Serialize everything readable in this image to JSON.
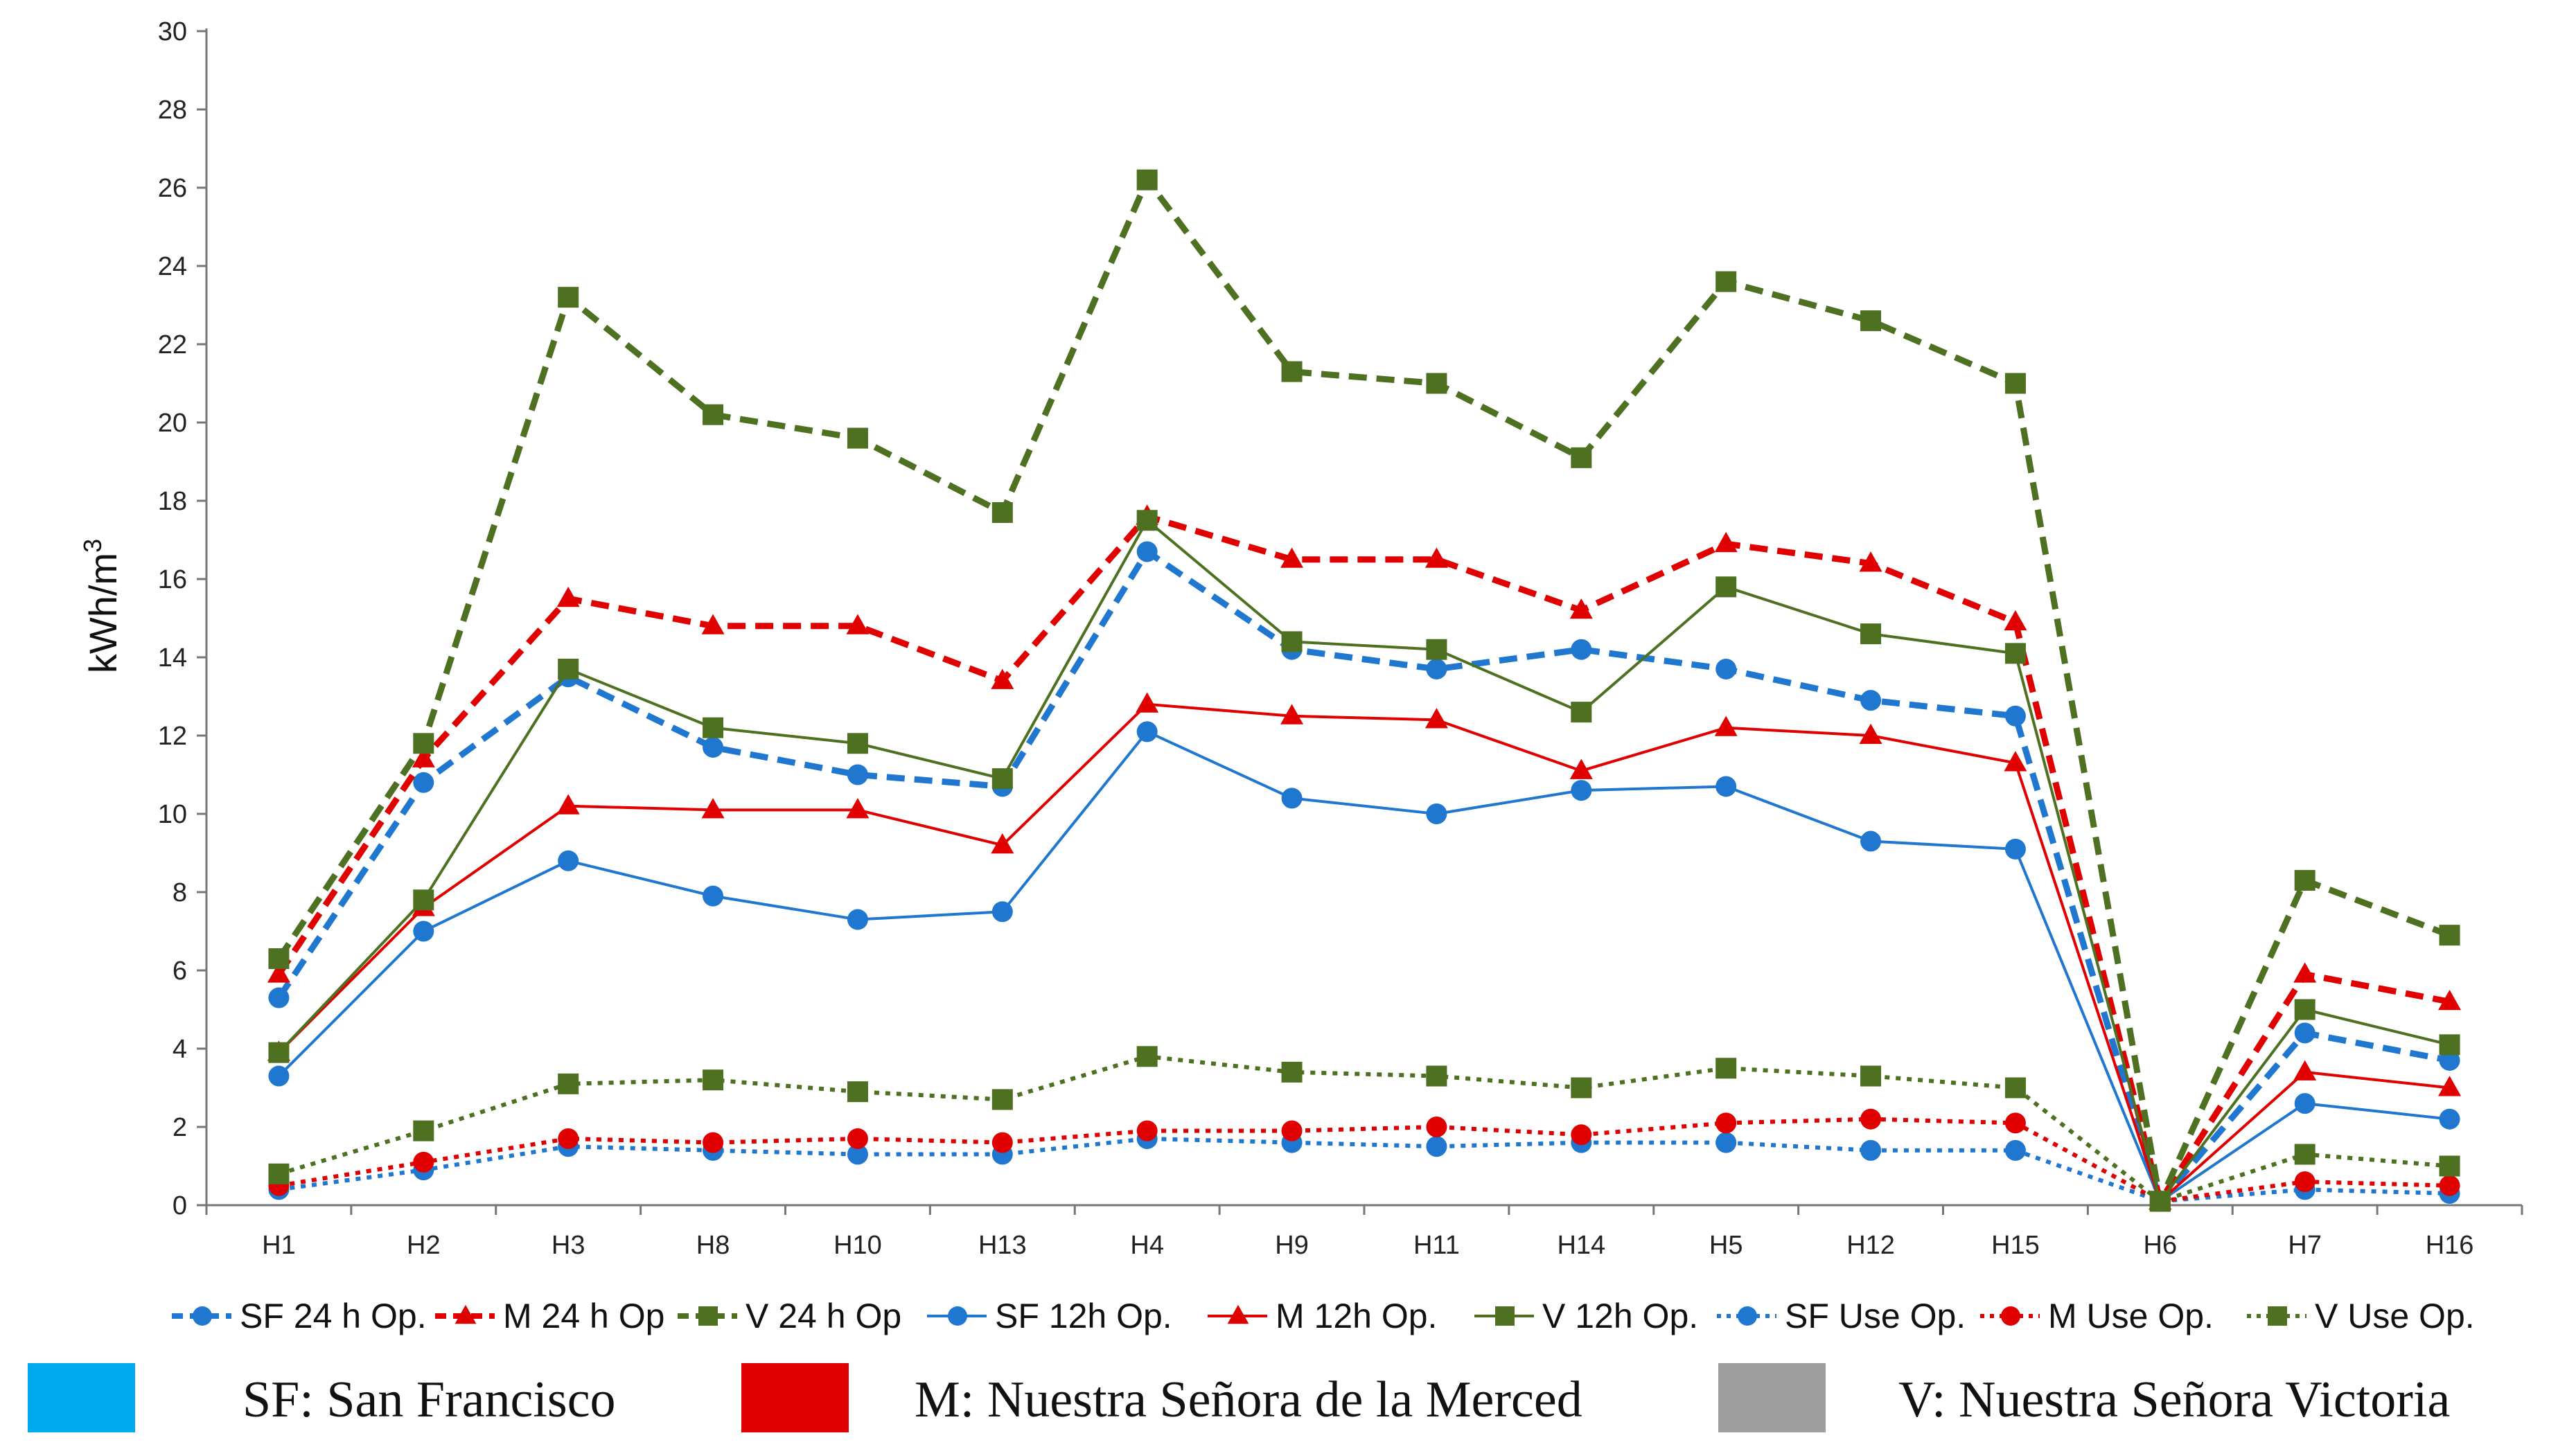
{
  "chart_data": {
    "type": "line",
    "title": "",
    "xlabel": "",
    "ylabel": "kWh/m",
    "ylabel_superscript": "3",
    "ylim": [
      0,
      30
    ],
    "y_ticks": [
      "0",
      "2",
      "4",
      "6",
      "8",
      "10",
      "12",
      "14",
      "16",
      "18",
      "20",
      "22",
      "24",
      "26",
      "28",
      "30"
    ],
    "categories": [
      "H1",
      "H2",
      "H3",
      "H8",
      "H10",
      "H13",
      "H4",
      "H9",
      "H11",
      "H14",
      "H5",
      "H12",
      "H15",
      "H6",
      "H7",
      "H16"
    ],
    "series": [
      {
        "name": "SF 24 h Op.",
        "color": "#1f77d0",
        "dash": "dashed",
        "marker": "circle",
        "values": [
          5.3,
          10.8,
          13.5,
          11.7,
          11.0,
          10.7,
          16.7,
          14.2,
          13.7,
          14.2,
          13.7,
          12.9,
          12.5,
          0.1,
          4.4,
          3.7
        ]
      },
      {
        "name": "M 24 h Op",
        "color": "#e00000",
        "dash": "dashed",
        "marker": "triangle",
        "values": [
          5.9,
          11.4,
          15.5,
          14.8,
          14.8,
          13.4,
          17.6,
          16.5,
          16.5,
          15.2,
          16.9,
          16.4,
          14.9,
          0.1,
          5.9,
          5.2
        ]
      },
      {
        "name": "V 24 h Op",
        "color": "#4d7021",
        "dash": "dashed",
        "marker": "square",
        "values": [
          6.3,
          11.8,
          23.2,
          20.2,
          19.6,
          17.7,
          26.2,
          21.3,
          21.0,
          19.1,
          23.6,
          22.6,
          21.0,
          0.1,
          8.3,
          6.9
        ]
      },
      {
        "name": "SF 12h Op.",
        "color": "#1f77d0",
        "dash": "solid",
        "marker": "circle",
        "values": [
          3.3,
          7.0,
          8.8,
          7.9,
          7.3,
          7.5,
          12.1,
          10.4,
          10.0,
          10.6,
          10.7,
          9.3,
          9.1,
          0.1,
          2.6,
          2.2
        ]
      },
      {
        "name": "M 12h Op.",
        "color": "#e00000",
        "dash": "solid",
        "marker": "triangle",
        "values": [
          3.9,
          7.6,
          10.2,
          10.1,
          10.1,
          9.2,
          12.8,
          12.5,
          12.4,
          11.1,
          12.2,
          12.0,
          11.3,
          0.1,
          3.4,
          3.0
        ]
      },
      {
        "name": "V 12h Op.",
        "color": "#4d7021",
        "dash": "solid",
        "marker": "square",
        "values": [
          3.9,
          7.8,
          13.7,
          12.2,
          11.8,
          10.9,
          17.5,
          14.4,
          14.2,
          12.6,
          15.8,
          14.6,
          14.1,
          0.1,
          5.0,
          4.1
        ]
      },
      {
        "name": "SF Use Op.",
        "color": "#1f77d0",
        "dash": "dotted",
        "marker": "circle",
        "values": [
          0.4,
          0.9,
          1.5,
          1.4,
          1.3,
          1.3,
          1.7,
          1.6,
          1.5,
          1.6,
          1.6,
          1.4,
          1.4,
          0.1,
          0.4,
          0.3
        ]
      },
      {
        "name": "M Use Op.",
        "color": "#e00000",
        "dash": "dotted",
        "marker": "circle",
        "values": [
          0.5,
          1.1,
          1.7,
          1.6,
          1.7,
          1.6,
          1.9,
          1.9,
          2.0,
          1.8,
          2.1,
          2.2,
          2.1,
          0.1,
          0.6,
          0.5
        ]
      },
      {
        "name": "V Use Op.",
        "color": "#4d7021",
        "dash": "dotted",
        "marker": "square",
        "values": [
          0.8,
          1.9,
          3.1,
          3.2,
          2.9,
          2.7,
          3.8,
          3.4,
          3.3,
          3.0,
          3.5,
          3.3,
          3.0,
          0.1,
          1.3,
          1.0
        ]
      }
    ]
  },
  "key": [
    {
      "label": "SF: San Francisco",
      "color": "#00aaee"
    },
    {
      "label": "M: Nuestra Señora de la Merced",
      "color": "#e00000"
    },
    {
      "label": "V: Nuestra Señora Victoria",
      "color": "#9e9e9e"
    }
  ]
}
